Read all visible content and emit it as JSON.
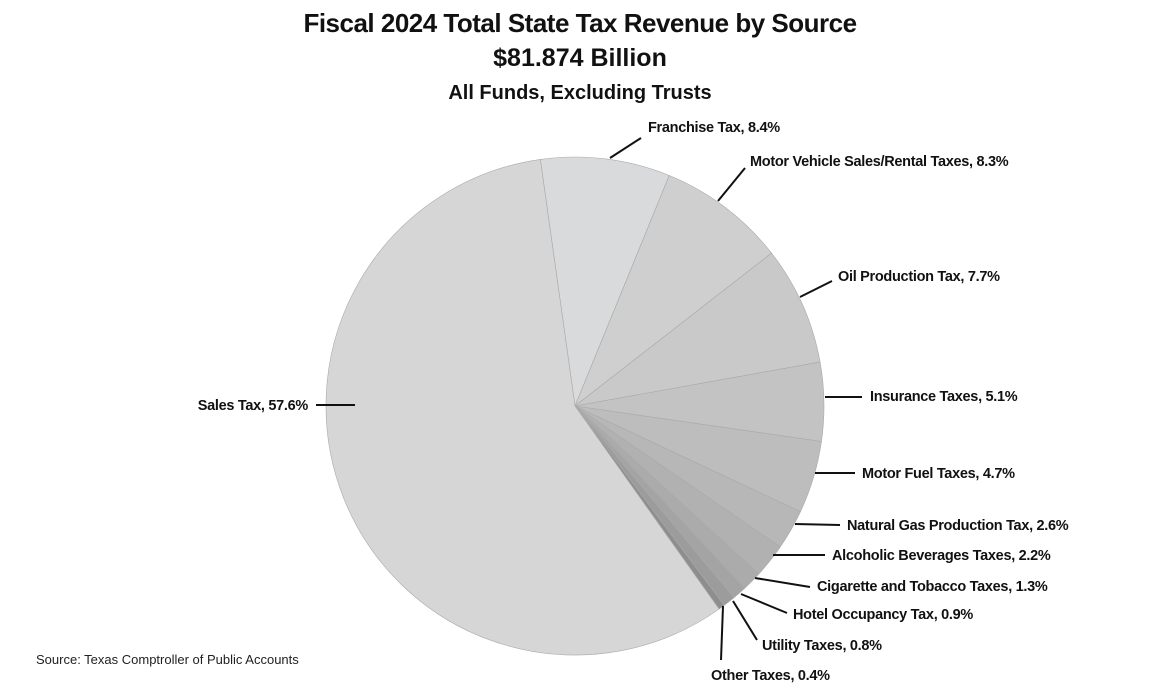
{
  "chart_data": {
    "type": "pie",
    "title": "Fiscal 2024 Total State Tax Revenue by Source",
    "subtitle": "$81.874 Billion",
    "subtitle2": "All Funds, Excluding Trusts",
    "source": "Source: Texas Comptroller of Public Accounts",
    "slices": [
      {
        "name": "Franchise Tax",
        "value": 8.4,
        "label": "Franchise Tax, 8.4%",
        "color": "#d9dadc"
      },
      {
        "name": "Motor Vehicle Sales/Rental Taxes",
        "value": 8.3,
        "label": "Motor Vehicle Sales/Rental Taxes, 8.3%",
        "color": "#cfcfcf"
      },
      {
        "name": "Oil Production Tax",
        "value": 7.7,
        "label": "Oil Production Tax, 7.7%",
        "color": "#c9c9c9"
      },
      {
        "name": "Insurance Taxes",
        "value": 5.1,
        "label": "Insurance Taxes, 5.1%",
        "color": "#c3c3c3"
      },
      {
        "name": "Motor Fuel Taxes",
        "value": 4.7,
        "label": "Motor Fuel Taxes, 4.7%",
        "color": "#bdbdbd"
      },
      {
        "name": "Natural Gas Production Tax",
        "value": 2.6,
        "label": "Natural Gas Production Tax, 2.6%",
        "color": "#b7b7b7"
      },
      {
        "name": "Alcoholic Beverages Taxes",
        "value": 2.2,
        "label": "Alcoholic Beverages Taxes, 2.2%",
        "color": "#b1b1b1"
      },
      {
        "name": "Cigarette and Tobacco Taxes",
        "value": 1.3,
        "label": "Cigarette and Tobacco Taxes, 1.3%",
        "color": "#ababab"
      },
      {
        "name": "Hotel Occupancy Tax",
        "value": 0.9,
        "label": "Hotel Occupancy Tax, 0.9%",
        "color": "#a4a4a4"
      },
      {
        "name": "Utility Taxes",
        "value": 0.8,
        "label": "Utility Taxes, 0.8%",
        "color": "#9c9c9c"
      },
      {
        "name": "Other Taxes",
        "value": 0.4,
        "label": "Other Taxes, 0.4%",
        "color": "#8e8e8e"
      },
      {
        "name": "Sales Tax",
        "value": 57.6,
        "label": "Sales Tax, 57.6%",
        "color": "#d6d6d6"
      }
    ]
  }
}
